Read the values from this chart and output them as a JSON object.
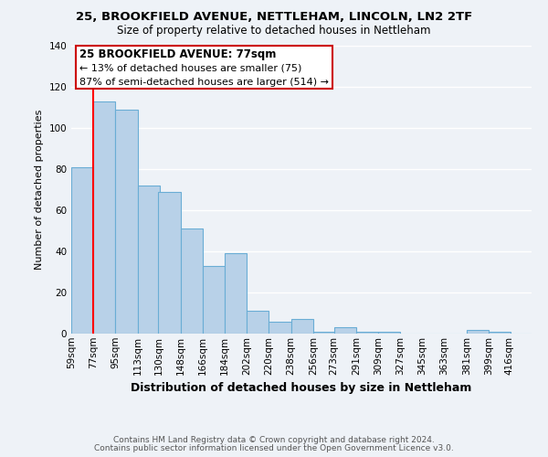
{
  "title1": "25, BROOKFIELD AVENUE, NETTLEHAM, LINCOLN, LN2 2TF",
  "title2": "Size of property relative to detached houses in Nettleham",
  "xlabel": "Distribution of detached houses by size in Nettleham",
  "ylabel": "Number of detached properties",
  "footer1": "Contains HM Land Registry data © Crown copyright and database right 2024.",
  "footer2": "Contains public sector information licensed under the Open Government Licence v3.0.",
  "annotation_line1": "25 BROOKFIELD AVENUE: 77sqm",
  "annotation_line2": "← 13% of detached houses are smaller (75)",
  "annotation_line3": "87% of semi-detached houses are larger (514) →",
  "bar_color": "#b8d1e8",
  "bar_edge_color": "#6aadd5",
  "red_line_x": 77,
  "categories": [
    "59sqm",
    "77sqm",
    "95sqm",
    "113sqm",
    "130sqm",
    "148sqm",
    "166sqm",
    "184sqm",
    "202sqm",
    "220sqm",
    "238sqm",
    "256sqm",
    "273sqm",
    "291sqm",
    "309sqm",
    "327sqm",
    "345sqm",
    "363sqm",
    "381sqm",
    "399sqm",
    "416sqm"
  ],
  "bin_edges": [
    59,
    77,
    95,
    113,
    130,
    148,
    166,
    184,
    202,
    220,
    238,
    256,
    273,
    291,
    309,
    327,
    345,
    363,
    381,
    399,
    416
  ],
  "values": [
    81,
    113,
    109,
    72,
    69,
    51,
    33,
    39,
    11,
    6,
    7,
    1,
    3,
    1,
    1,
    0,
    0,
    0,
    2,
    1,
    0
  ],
  "ylim": [
    0,
    140
  ],
  "yticks": [
    0,
    20,
    40,
    60,
    80,
    100,
    120,
    140
  ],
  "bg_color": "#eef2f7",
  "grid_color": "#ffffff",
  "annotation_box_color": "#ffffff",
  "annotation_box_edge": "#cc0000",
  "title_fontsize": 9.5,
  "subtitle_fontsize": 8.5,
  "xlabel_fontsize": 9,
  "ylabel_fontsize": 8,
  "tick_fontsize": 7.5,
  "footer_fontsize": 6.5
}
